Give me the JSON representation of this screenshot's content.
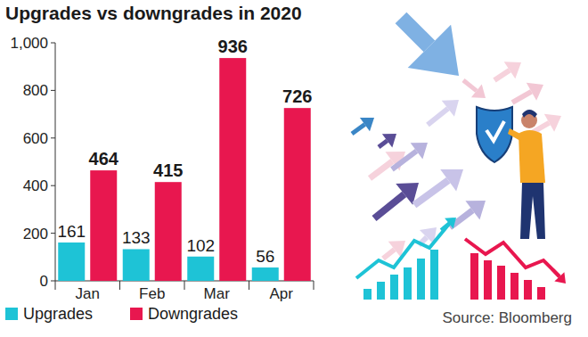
{
  "chart_data": {
    "type": "bar",
    "title": "Upgrades vs downgrades in 2020",
    "categories": [
      "Jan",
      "Feb",
      "Mar",
      "Apr"
    ],
    "series": [
      {
        "name": "Upgrades",
        "color": "#1ec3d6",
        "values": [
          161,
          133,
          102,
          56
        ]
      },
      {
        "name": "Downgrades",
        "color": "#e8174f",
        "values": [
          464,
          415,
          936,
          726
        ]
      }
    ],
    "ylim": [
      0,
      1000
    ],
    "yticks": [
      0,
      200,
      400,
      600,
      800,
      {
        "value": 1000,
        "label": "1,000"
      }
    ],
    "grid": false,
    "legend": "bottom",
    "data_labels": true,
    "annotations": [
      "Source: Bloomberg"
    ]
  }
}
